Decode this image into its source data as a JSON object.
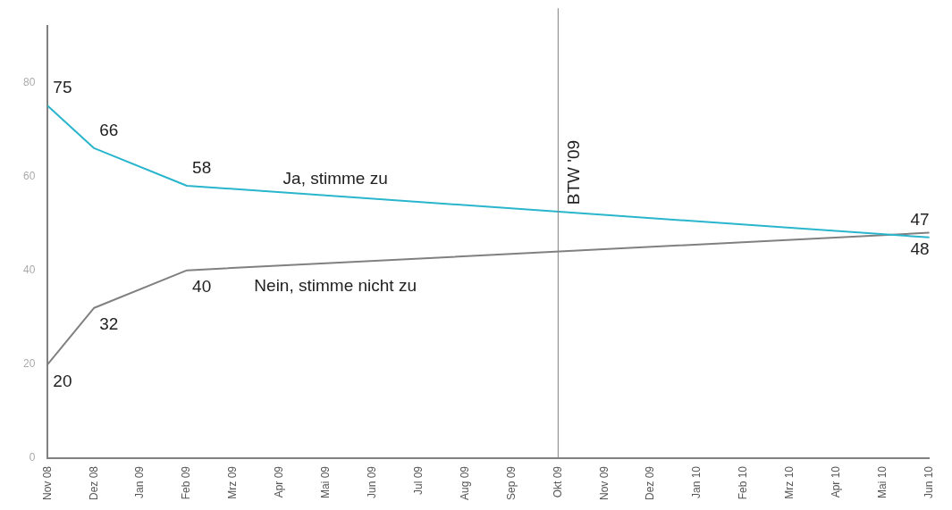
{
  "chart_data": {
    "type": "line",
    "categories": [
      "Nov 08",
      "Dez 08",
      "Jan 09",
      "Feb 09",
      "Mrz 09",
      "Apr 09",
      "Mai 09",
      "Jun 09",
      "Jul 09",
      "Aug 09",
      "Sep 09",
      "Okt 09",
      "Nov 09",
      "Dez 09",
      "Jan 10",
      "Feb 10",
      "Mrz 10",
      "Apr 10",
      "Mai 10",
      "Jun 10"
    ],
    "series": [
      {
        "name": "Ja, stimme zu",
        "color": "#29b5cc",
        "values": [
          75,
          66,
          null,
          58,
          null,
          null,
          null,
          null,
          null,
          null,
          null,
          null,
          null,
          null,
          null,
          null,
          null,
          null,
          null,
          47
        ]
      },
      {
        "name": "Nein, stimme nicht zu",
        "color": "#808080",
        "values": [
          20,
          32,
          null,
          40,
          null,
          null,
          null,
          null,
          null,
          null,
          null,
          null,
          null,
          null,
          null,
          null,
          null,
          null,
          null,
          48
        ]
      }
    ],
    "ylim": [
      0,
      92
    ],
    "yticks": [
      0,
      20,
      40,
      60,
      80
    ],
    "grid": false,
    "legend": false,
    "marker": "none",
    "data_labels": true,
    "ref_lines": [
      {
        "axis": "x",
        "value": "Okt 09",
        "label": "BTW '09",
        "color": "#808080"
      }
    ]
  }
}
